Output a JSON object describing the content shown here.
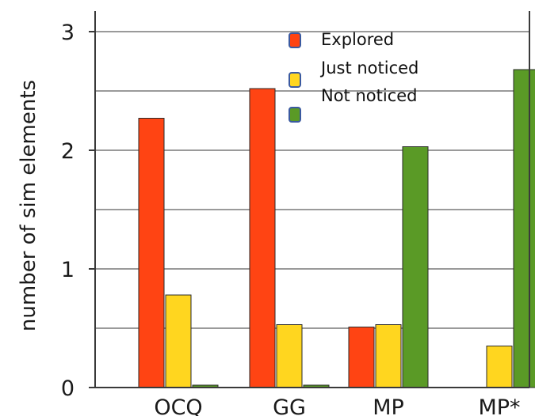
{
  "chart_data": {
    "type": "bar",
    "title": "",
    "xlabel": "",
    "ylabel": "number of sim elements",
    "ylim": [
      0,
      3.2
    ],
    "yticks": [
      0,
      1,
      2,
      3
    ],
    "grid": true,
    "legend_position": "top-center",
    "categories": [
      "OCQ",
      "GG",
      "MP",
      "MP*"
    ],
    "series": [
      {
        "name": "Explored",
        "color": "#ff4413",
        "values": [
          2.27,
          2.52,
          0.51,
          0
        ]
      },
      {
        "name": "Just noticed",
        "color": "#ffd61f",
        "values": [
          0.78,
          0.53,
          0.53,
          0.35
        ]
      },
      {
        "name": "Not noticed",
        "color": "#5a9a26",
        "values": [
          0.02,
          0.02,
          2.03,
          2.68
        ]
      }
    ]
  }
}
